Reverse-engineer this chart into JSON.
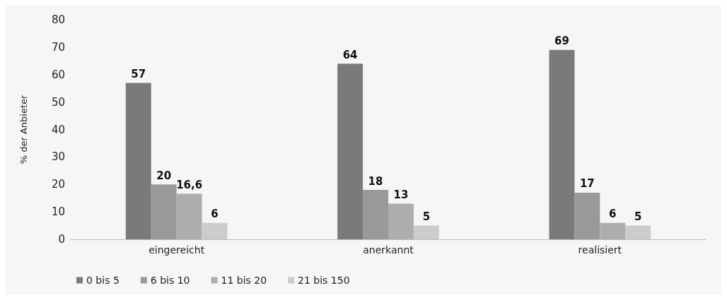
{
  "chart_data": {
    "type": "bar",
    "ylabel": "% der Anbieter",
    "categories": [
      "eingereicht",
      "anerkannt",
      "realisiert"
    ],
    "series": [
      {
        "name": "0 bis 5",
        "color": "#7a7a7a",
        "values": [
          57,
          64,
          69
        ],
        "value_labels": [
          "57",
          "64",
          "69"
        ]
      },
      {
        "name": "6 bis 10",
        "color": "#999999",
        "values": [
          20,
          18,
          17
        ],
        "value_labels": [
          "20",
          "18",
          "17"
        ]
      },
      {
        "name": "11 bis 20",
        "color": "#adadad",
        "values": [
          16.6,
          13,
          6
        ],
        "value_labels": [
          "16,6",
          "13",
          "6"
        ]
      },
      {
        "name": "21 bis 150",
        "color": "#cccccc",
        "values": [
          6,
          5,
          5
        ],
        "value_labels": [
          "6",
          "5",
          "5"
        ]
      }
    ],
    "ylim": [
      0,
      80
    ],
    "yticks": [
      0,
      10,
      20,
      30,
      40,
      50,
      60,
      70,
      80
    ],
    "grid": false,
    "legend": "bottom left"
  }
}
